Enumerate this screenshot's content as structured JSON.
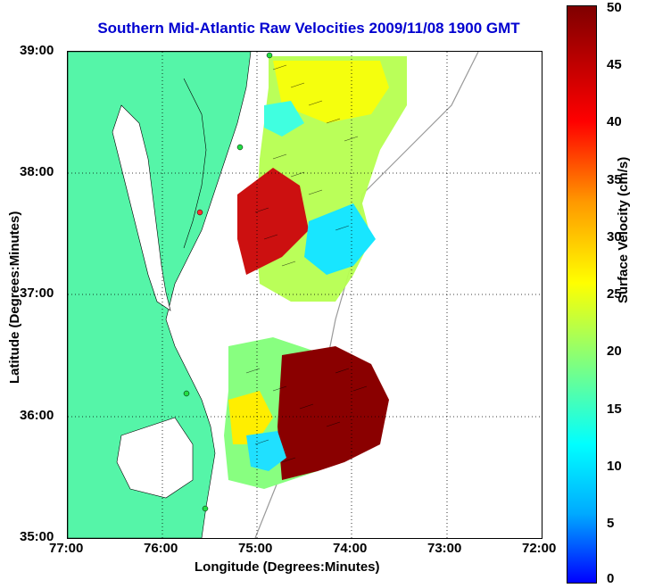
{
  "map": {
    "title": "Southern Mid-Atlantic Raw Velocities 2009/11/08 1900 GMT",
    "xlabel": "Longitude (Degrees:Minutes)",
    "ylabel": "Latitude (Degrees:Minutes)",
    "lat_ticks": [
      "39:00",
      "38:00",
      "37:00",
      "36:00",
      "35:00"
    ],
    "lon_ticks": [
      "77:00",
      "76:00",
      "75:00",
      "74:00",
      "73:00",
      "72:00"
    ],
    "colorbar": {
      "label": "Surface Velocity (cm/s)",
      "ticks": [
        "50",
        "45",
        "40",
        "35",
        "30",
        "25",
        "20",
        "15",
        "10",
        "5",
        "0"
      ],
      "min": 0,
      "max": 50,
      "colors": [
        "#0000ff",
        "#00aaff",
        "#00ffff",
        "#7fff7f",
        "#ffff00",
        "#ff9900",
        "#ff0000",
        "#7f0000"
      ]
    },
    "land_color": "#55f5a8",
    "lon_range": [
      -77,
      -72
    ],
    "lat_range": [
      35,
      39
    ],
    "grid": "dotted"
  }
}
